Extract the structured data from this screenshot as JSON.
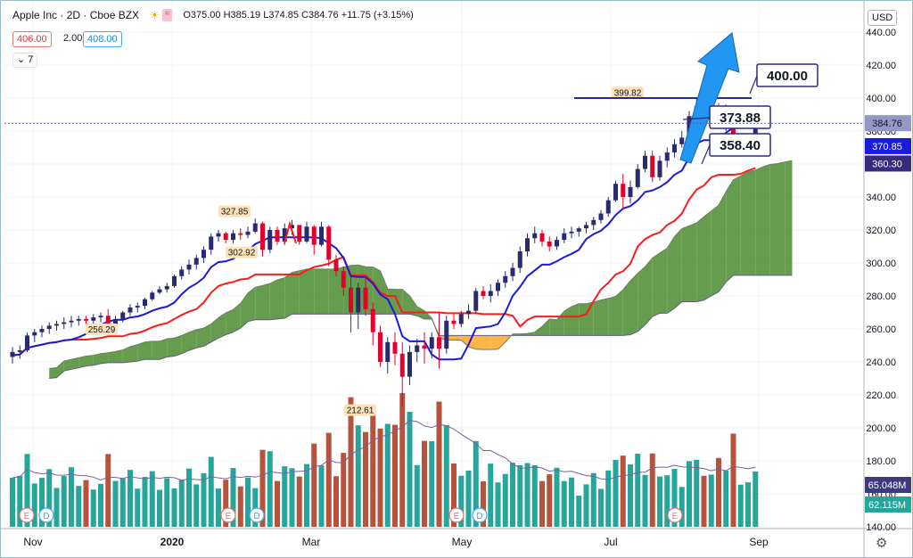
{
  "header": {
    "symbol": "Apple Inc · 2D · Cboe BZX",
    "ohlc": "O375.00 H385.19 L374.85 C384.76 +11.75 (+3.15%)",
    "bid": "406.00",
    "spread": "2.00",
    "ask": "408.00",
    "indicator": "7",
    "currency": "USD"
  },
  "colors": {
    "up": "#2a2a6e",
    "down": "#e4002b",
    "tenkan": "#1a1adb",
    "kijun": "#ff1a1a",
    "cloud_bull": "#4b8b2f",
    "cloud_bear": "#ffa726",
    "vol_up": "#26a69a",
    "vol_down": "#b5533c",
    "vol_ma": "#7b5ea7",
    "arrow": "#2196f3",
    "callout": "#2c2a86"
  },
  "chart_data": {
    "type": "candlestick",
    "title": "Apple Inc · 2D · Cboe BZX",
    "x_ticks": [
      "Nov",
      "2020",
      "Mar",
      "May",
      "Jul",
      "Sep"
    ],
    "ylim": [
      140,
      450
    ],
    "y_ticks": [
      140,
      160,
      180,
      200,
      220,
      240,
      260,
      280,
      300,
      320,
      340,
      360,
      380,
      400,
      420,
      440
    ],
    "ohlc": [
      [
        243,
        249,
        239,
        246
      ],
      [
        246,
        250,
        242,
        247
      ],
      [
        247,
        258,
        246,
        256
      ],
      [
        256,
        260,
        252,
        258
      ],
      [
        258,
        262,
        255,
        260
      ],
      [
        260,
        264,
        257,
        262
      ],
      [
        262,
        265,
        259,
        263
      ],
      [
        263,
        267,
        260,
        264
      ],
      [
        264,
        268,
        261,
        265
      ],
      [
        265,
        268,
        262,
        266
      ],
      [
        266,
        268,
        263,
        265
      ],
      [
        265,
        269,
        262,
        267
      ],
      [
        267,
        270,
        264,
        268
      ],
      [
        268,
        272,
        259,
        262
      ],
      [
        262,
        268,
        259,
        266
      ],
      [
        266,
        271,
        264,
        270
      ],
      [
        270,
        275,
        268,
        273
      ],
      [
        273,
        276,
        270,
        274
      ],
      [
        274,
        279,
        272,
        278
      ],
      [
        278,
        283,
        277,
        282
      ],
      [
        282,
        286,
        281,
        284
      ],
      [
        284,
        288,
        282,
        286
      ],
      [
        286,
        293,
        285,
        292
      ],
      [
        292,
        298,
        290,
        296
      ],
      [
        296,
        302,
        293,
        299
      ],
      [
        299,
        305,
        296,
        303
      ],
      [
        303,
        310,
        300,
        308
      ],
      [
        308,
        318,
        305,
        316
      ],
      [
        316,
        320,
        313,
        318
      ],
      [
        318,
        319,
        312,
        314
      ],
      [
        314,
        320,
        312,
        318
      ],
      [
        318,
        321,
        314,
        317
      ],
      [
        317,
        322,
        315,
        319
      ],
      [
        319,
        327,
        318,
        324
      ],
      [
        324,
        325,
        304,
        308
      ],
      [
        308,
        322,
        306,
        320
      ],
      [
        320,
        322,
        311,
        313
      ],
      [
        313,
        324,
        311,
        321
      ],
      [
        321,
        326,
        317,
        323
      ],
      [
        323,
        323,
        311,
        313
      ],
      [
        313,
        325,
        312,
        322
      ],
      [
        322,
        323,
        305,
        311
      ],
      [
        311,
        325,
        310,
        322
      ],
      [
        322,
        323,
        298,
        302
      ],
      [
        302,
        305,
        292,
        295
      ],
      [
        295,
        298,
        280,
        285
      ],
      [
        285,
        292,
        258,
        270
      ],
      [
        270,
        288,
        260,
        285
      ],
      [
        285,
        292,
        268,
        272
      ],
      [
        272,
        276,
        250,
        258
      ],
      [
        258,
        262,
        237,
        240
      ],
      [
        240,
        255,
        233,
        252
      ],
      [
        252,
        258,
        238,
        245
      ],
      [
        245,
        252,
        213,
        231
      ],
      [
        231,
        250,
        226,
        246
      ],
      [
        246,
        254,
        240,
        250
      ],
      [
        250,
        258,
        239,
        248
      ],
      [
        248,
        258,
        242,
        255
      ],
      [
        255,
        270,
        236,
        248
      ],
      [
        248,
        268,
        245,
        265
      ],
      [
        265,
        269,
        260,
        263
      ],
      [
        263,
        271,
        261,
        269
      ],
      [
        269,
        275,
        266,
        271
      ],
      [
        271,
        285,
        269,
        283
      ],
      [
        283,
        286,
        278,
        280
      ],
      [
        280,
        287,
        276,
        283
      ],
      [
        283,
        290,
        280,
        288
      ],
      [
        288,
        295,
        285,
        292
      ],
      [
        292,
        300,
        289,
        297
      ],
      [
        297,
        310,
        294,
        307
      ],
      [
        307,
        318,
        304,
        315
      ],
      [
        315,
        322,
        312,
        318
      ],
      [
        318,
        320,
        310,
        313
      ],
      [
        313,
        316,
        307,
        310
      ],
      [
        310,
        316,
        308,
        314
      ],
      [
        314,
        321,
        312,
        318
      ],
      [
        318,
        322,
        315,
        319
      ],
      [
        319,
        322,
        316,
        321
      ],
      [
        321,
        325,
        318,
        323
      ],
      [
        323,
        328,
        320,
        326
      ],
      [
        326,
        332,
        324,
        330
      ],
      [
        330,
        340,
        328,
        338
      ],
      [
        338,
        350,
        337,
        348
      ],
      [
        348,
        354,
        332,
        340
      ],
      [
        340,
        350,
        336,
        346
      ],
      [
        346,
        360,
        345,
        357
      ],
      [
        357,
        368,
        355,
        365
      ],
      [
        365,
        368,
        349,
        352
      ],
      [
        352,
        365,
        350,
        362
      ],
      [
        362,
        370,
        358,
        367
      ],
      [
        367,
        375,
        364,
        372
      ],
      [
        372,
        380,
        370,
        376
      ],
      [
        376,
        392,
        374,
        389
      ],
      [
        389,
        400,
        385,
        395
      ],
      [
        395,
        398,
        383,
        387
      ],
      [
        387,
        396,
        385,
        394
      ],
      [
        394,
        397,
        382,
        384
      ],
      [
        384,
        396,
        380,
        391
      ],
      [
        391,
        395,
        365,
        369
      ],
      [
        369,
        378,
        366,
        371
      ],
      [
        371,
        376,
        367,
        373
      ],
      [
        375,
        385,
        375,
        385
      ]
    ],
    "annotations": [
      {
        "label": "327.85",
        "value": 327.85
      },
      {
        "label": "302.92",
        "value": 302.92
      },
      {
        "label": "256.29",
        "value": 256.29
      },
      {
        "label": "212.61",
        "value": 212.61
      },
      {
        "label": "399.82",
        "value": 399.82
      }
    ],
    "callouts": [
      {
        "label": "400.00",
        "value": 400.0
      },
      {
        "label": "373.88",
        "value": 373.88
      },
      {
        "label": "358.40",
        "value": 358.4
      }
    ],
    "price_labels": [
      {
        "label": "384.76",
        "value": 384.76,
        "role": "last"
      },
      {
        "label": "370.85",
        "value": 370.85,
        "role": "tenkan"
      },
      {
        "label": "360.30",
        "value": 360.3,
        "role": "kijun"
      },
      {
        "label": "65.048M",
        "value": 65.048,
        "role": "volume"
      },
      {
        "label": "62.115M",
        "value": 62.115,
        "role": "volume_ma"
      }
    ],
    "events": [
      "E",
      "D",
      "E",
      "D",
      "E",
      "D",
      "E"
    ]
  }
}
